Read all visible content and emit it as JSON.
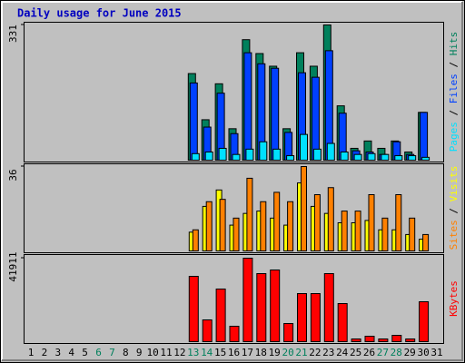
{
  "chart_data": {
    "type": "bar",
    "title": "Daily usage for June 2015",
    "categories": [
      "1",
      "2",
      "3",
      "4",
      "5",
      "6",
      "7",
      "8",
      "9",
      "10",
      "11",
      "12",
      "13",
      "14",
      "15",
      "16",
      "17",
      "18",
      "19",
      "20",
      "21",
      "22",
      "23",
      "24",
      "25",
      "26",
      "27",
      "28",
      "29",
      "30",
      "31"
    ],
    "category_colors": [
      "#000000",
      "#000000",
      "#000000",
      "#000000",
      "#000000",
      "#00805c",
      "#00805c",
      "#000000",
      "#000000",
      "#000000",
      "#000000",
      "#000000",
      "#00805c",
      "#00805c",
      "#000000",
      "#000000",
      "#000000",
      "#000000",
      "#000000",
      "#00805c",
      "#00805c",
      "#000000",
      "#000000",
      "#000000",
      "#000000",
      "#000000",
      "#00805c",
      "#00805c",
      "#000000",
      "#000000",
      "#000000"
    ],
    "panels": [
      {
        "ylim": [
          0,
          331
        ],
        "yticks": [
          331
        ],
        "series": [
          {
            "name": "Hits",
            "color": "#00805c",
            "values": [
              0,
              0,
              0,
              0,
              0,
              0,
              0,
              0,
              0,
              0,
              0,
              0,
              212,
              99,
              187,
              77,
              295,
              261,
              230,
              77,
              263,
              230,
              331,
              133,
              29,
              47,
              29,
              47,
              20,
              117,
              0
            ]
          },
          {
            "name": "Files",
            "color": "#0040ff",
            "values": [
              0,
              0,
              0,
              0,
              0,
              0,
              0,
              0,
              0,
              0,
              0,
              0,
              189,
              81,
              164,
              65,
              263,
              236,
              225,
              68,
              214,
              203,
              268,
              115,
              23,
              20,
              14,
              45,
              14,
              117,
              0
            ]
          },
          {
            "name": "Pages",
            "color": "#00e0ff",
            "values": [
              0,
              0,
              0,
              0,
              0,
              0,
              0,
              0,
              0,
              0,
              0,
              0,
              16,
              20,
              29,
              14,
              27,
              45,
              27,
              11,
              63,
              27,
              41,
              20,
              14,
              16,
              14,
              11,
              11,
              7,
              0
            ]
          }
        ]
      },
      {
        "ylim": [
          0,
          36
        ],
        "yticks": [
          36
        ],
        "series": [
          {
            "name": "Visits",
            "color": "#ffff00",
            "values": [
              0,
              0,
              0,
              0,
              0,
              0,
              0,
              0,
              0,
              0,
              0,
              0,
              8,
              19,
              26,
              11,
              16,
              17,
              14,
              11,
              29,
              19,
              16,
              12,
              12,
              13,
              9,
              9,
              7,
              5,
              0
            ]
          },
          {
            "name": "Sites",
            "color": "#ff8000",
            "values": [
              0,
              0,
              0,
              0,
              0,
              0,
              0,
              0,
              0,
              0,
              0,
              0,
              9,
              21,
              22,
              14,
              31,
              21,
              25,
              21,
              36,
              24,
              27,
              17,
              17,
              24,
              14,
              24,
              14,
              7,
              0
            ]
          }
        ]
      },
      {
        "ylim": [
          0,
          41911
        ],
        "yticks": [
          41911
        ],
        "series": [
          {
            "name": "KBytes",
            "color": "#ff0000",
            "values": [
              0,
              0,
              0,
              0,
              0,
              0,
              0,
              0,
              0,
              0,
              0,
              0,
              32800,
              10933,
              26422,
              7744,
              41911,
              34166,
              35989,
              9111,
              24144,
              24144,
              34166,
              19133,
              1367,
              2733,
              1367,
              3189,
              1367,
              20044,
              0
            ]
          }
        ]
      }
    ]
  }
}
